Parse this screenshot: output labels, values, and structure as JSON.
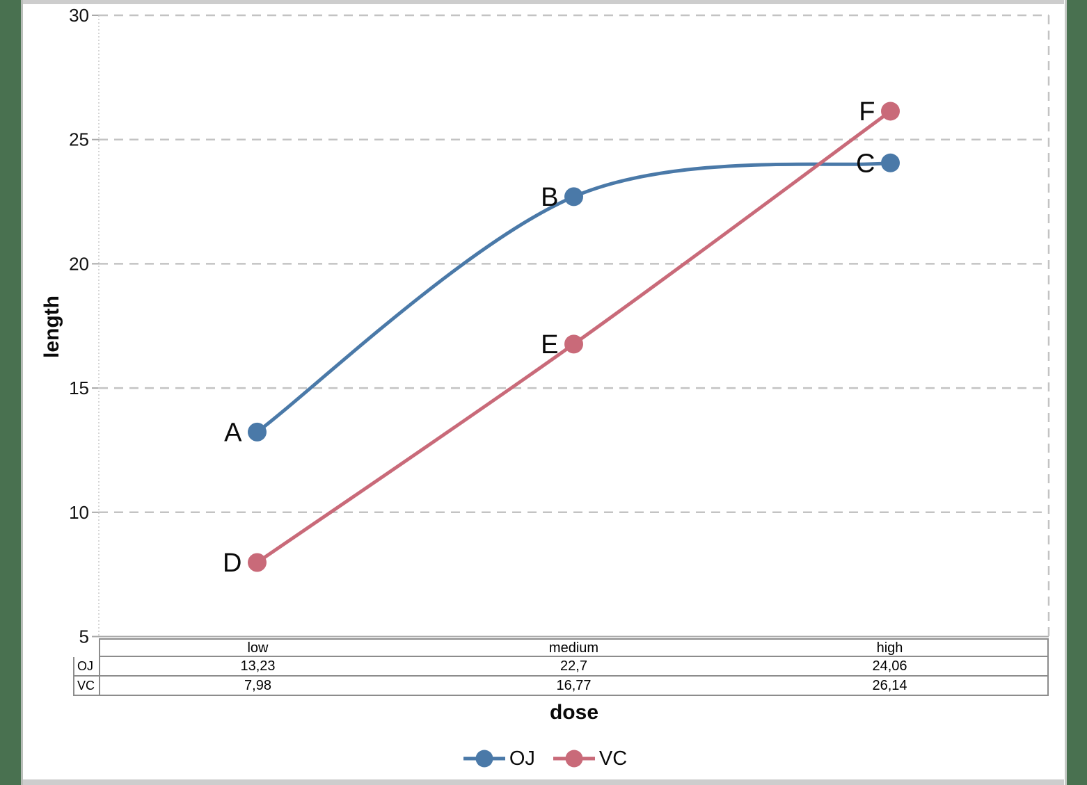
{
  "page": {
    "background_green": "#497150",
    "frame_gray": "#cdcdcd",
    "gridline_color": "#c3c3c3",
    "axis_color": "#a8a8a8",
    "table_border_color": "#8c8c8c"
  },
  "chart_data": {
    "type": "line",
    "title": "",
    "xlabel": "dose",
    "ylabel": "length",
    "categories": [
      "low",
      "medium",
      "high"
    ],
    "series": [
      {
        "name": "OJ",
        "color": "#4a79a8",
        "values": [
          13.23,
          22.7,
          24.06
        ],
        "point_labels": [
          "A",
          "B",
          "C"
        ],
        "smooth": true
      },
      {
        "name": "VC",
        "color": "#c96a79",
        "values": [
          7.98,
          16.77,
          26.14
        ],
        "point_labels": [
          "D",
          "E",
          "F"
        ],
        "smooth": true
      }
    ],
    "ylim": [
      5,
      30
    ],
    "yticks": [
      5,
      10,
      15,
      20,
      25,
      30
    ],
    "grid": "dashed-horizontal",
    "legend_position": "bottom"
  },
  "table": {
    "col_headers": [
      "low",
      "medium",
      "high"
    ],
    "rows": [
      {
        "header": "OJ",
        "cells": [
          "13,23",
          "22,7",
          "24,06"
        ]
      },
      {
        "header": "VC",
        "cells": [
          "7,98",
          "16,77",
          "26,14"
        ]
      }
    ]
  },
  "legend": {
    "items": [
      {
        "label": "OJ",
        "color": "#4a79a8"
      },
      {
        "label": "VC",
        "color": "#c96a79"
      }
    ]
  }
}
